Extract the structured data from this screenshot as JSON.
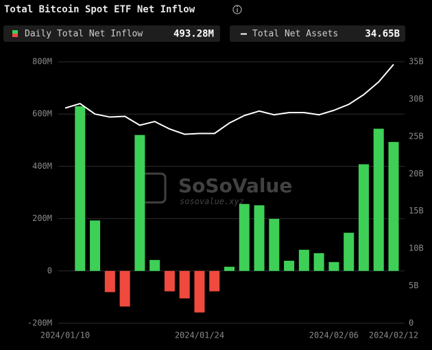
{
  "chart_data": {
    "type": "bar_line",
    "title": "Total Bitcoin Spot ETF Net Inflow",
    "watermark": [
      "SoSoValue",
      "sosovalue.xyz"
    ],
    "categories": [
      "2024/01/10",
      null,
      null,
      null,
      null,
      null,
      null,
      null,
      null,
      "2024/01/24",
      null,
      null,
      null,
      null,
      null,
      null,
      null,
      null,
      "2024/02/06",
      null,
      null,
      null,
      "2024/02/12"
    ],
    "series": [
      {
        "name": "Daily Total Net Inflow",
        "type": "bar",
        "axis": "y",
        "positive_color": "#3ecf57",
        "negative_color": "#f04a3e",
        "legend_value": "493.28M",
        "values": [
          null,
          630,
          193,
          -81,
          -136,
          520,
          42,
          -78,
          -105,
          -159,
          -78,
          16,
          256,
          251,
          199,
          39,
          81,
          68,
          34,
          146,
          408,
          544,
          493.28
        ]
      },
      {
        "name": "Total Net Assets",
        "type": "line",
        "axis": "y2",
        "color": "#ffffff",
        "legend_value": "34.65B",
        "values": [
          28.8,
          29.4,
          28.0,
          27.6,
          27.7,
          26.5,
          27.0,
          26.0,
          25.3,
          25.4,
          25.4,
          26.8,
          27.8,
          28.4,
          27.9,
          28.2,
          28.2,
          27.9,
          28.5,
          29.3,
          30.6,
          32.3,
          34.65
        ]
      }
    ],
    "ylim": [
      -200,
      800
    ],
    "yticks": [
      {
        "value": -200,
        "label": "-200M"
      },
      0,
      {
        "value": 200,
        "label": "200M"
      },
      {
        "value": 400,
        "label": "400M"
      },
      {
        "value": 600,
        "label": "600M"
      },
      {
        "value": 800,
        "label": "800M"
      }
    ],
    "y2lim": [
      0,
      35
    ],
    "y2ticks": [
      0,
      {
        "value": 5,
        "label": "5B"
      },
      {
        "value": 10,
        "label": "10B"
      },
      {
        "value": 15,
        "label": "15B"
      },
      {
        "value": 20,
        "label": "20B"
      },
      {
        "value": 25,
        "label": "25B"
      },
      {
        "value": 30,
        "label": "30B"
      },
      {
        "value": 35,
        "label": "35B"
      }
    ],
    "grid": true
  }
}
